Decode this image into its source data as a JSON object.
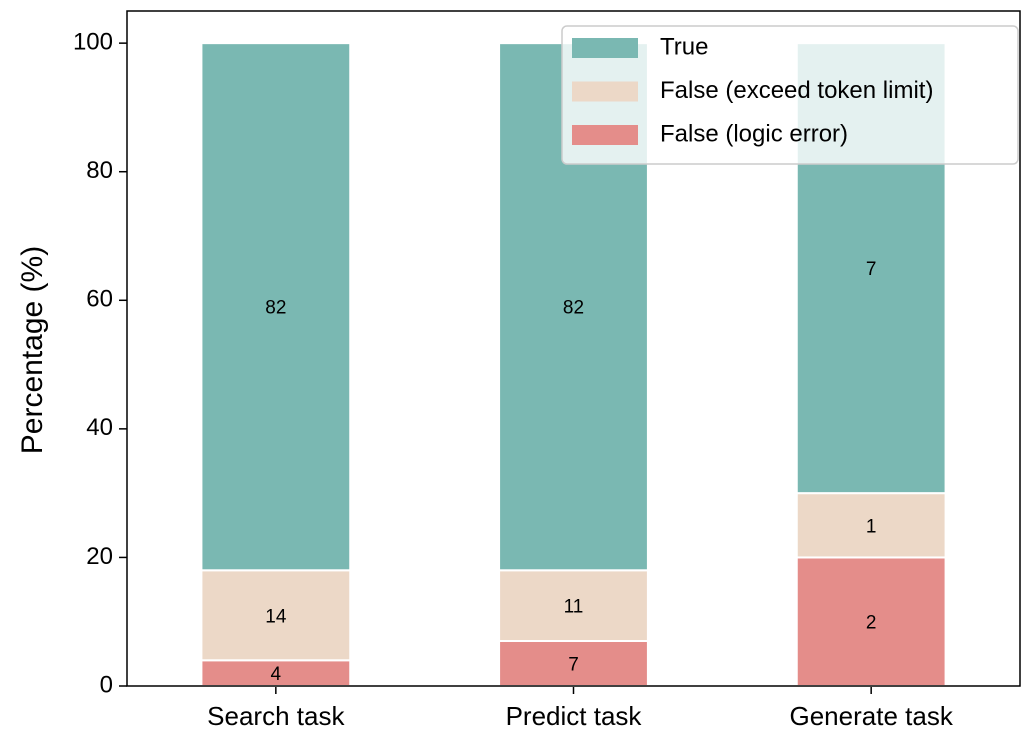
{
  "chart_data": {
    "type": "stacked_bar",
    "ylabel": "Percentage (%)",
    "categories": [
      "Search task",
      "Predict task",
      "Generate task"
    ],
    "series": [
      {
        "name": "True",
        "color": "#7ab8b2",
        "values": [
          82,
          82,
          70
        ],
        "counts": [
          82,
          82,
          7
        ]
      },
      {
        "name": "False (exceed token limit)",
        "color": "#ecd8c7",
        "values": [
          14,
          11,
          10
        ],
        "counts": [
          14,
          11,
          1
        ]
      },
      {
        "name": "False (logic error)",
        "color": "#e48d8a",
        "values": [
          4,
          7,
          20
        ],
        "counts": [
          4,
          7,
          2
        ]
      }
    ],
    "ylim": [
      0,
      105
    ],
    "yticks": [
      0,
      20,
      40,
      60,
      80,
      100
    ],
    "legend": "upper right"
  }
}
